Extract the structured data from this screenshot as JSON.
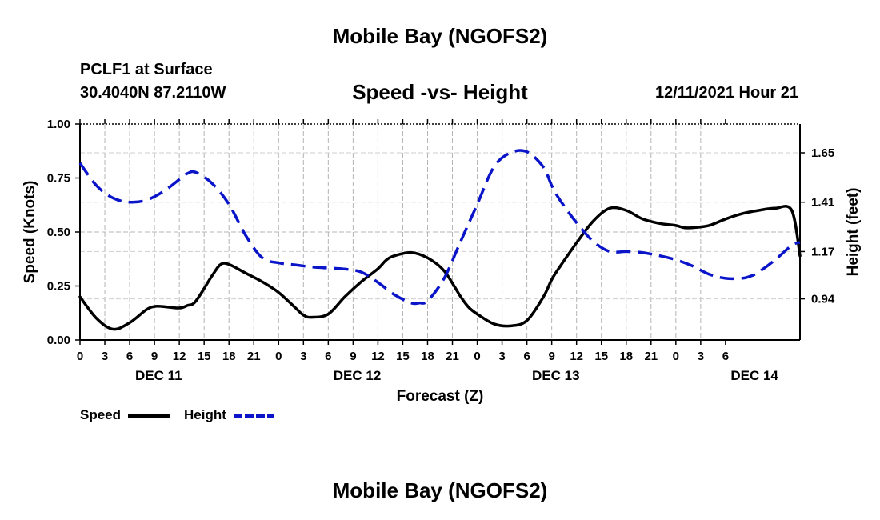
{
  "header": {
    "title": "Mobile Bay (NGOFS2)",
    "station": "PCLF1 at Surface",
    "coords": "30.4040N  87.2110W",
    "subtitle": "Speed -vs- Height",
    "datetime": "12/11/2021 Hour 21"
  },
  "footer": {
    "title": "Mobile Bay (NGOFS2)"
  },
  "legend": {
    "speed_label": "Speed",
    "height_label": "Height",
    "speed_color": "#000000",
    "height_color": "#0a14c8"
  },
  "chart_data": {
    "type": "line",
    "title": "Speed -vs- Height",
    "xlabel": "Forecast (Z)",
    "ylabel_left": "Speed (Knots)",
    "ylabel_right": "Height (feet)",
    "x_hours": [
      0,
      87
    ],
    "x_tick_labels": [
      "0",
      "3",
      "6",
      "9",
      "12",
      "15",
      "18",
      "21",
      "0",
      "3",
      "6",
      "9",
      "12",
      "15",
      "18",
      "21",
      "0",
      "3",
      "6",
      "9",
      "12",
      "15",
      "18",
      "21",
      "0",
      "3",
      "6"
    ],
    "day_labels": [
      {
        "label": "DEC 11",
        "hour": 9.5
      },
      {
        "label": "DEC 12",
        "hour": 33.5
      },
      {
        "label": "DEC 13",
        "hour": 57.5
      },
      {
        "label": "DEC 14",
        "hour": 81.5
      }
    ],
    "y_left": {
      "min": 0,
      "max": 1.0,
      "ticks": [
        0.0,
        0.25,
        0.5,
        0.75,
        1.0
      ],
      "tick_labels": [
        "0.00",
        "0.25",
        "0.50",
        "0.75",
        "1.00"
      ]
    },
    "y_right": {
      "min": 0.74,
      "max": 1.79,
      "ticks": [
        0.94,
        1.17,
        1.41,
        1.65
      ],
      "tick_labels": [
        "0.94",
        "1.17",
        "1.41",
        "1.65"
      ]
    },
    "grid": true,
    "series": [
      {
        "name": "Speed",
        "axis": "left",
        "color": "#000000",
        "style": "solid",
        "x": [
          0,
          2,
          4,
          6,
          8,
          9,
          10,
          12,
          13,
          14,
          16,
          17,
          18,
          20,
          22,
          24,
          26,
          27,
          28,
          30,
          32,
          34,
          36,
          37,
          38,
          40,
          42,
          44,
          46,
          47,
          48,
          50,
          52,
          54,
          56,
          57,
          58,
          60,
          62,
          64,
          66,
          68,
          70,
          72,
          73,
          74,
          76,
          78,
          80,
          82,
          84,
          86,
          87
        ],
        "values": [
          0.2,
          0.1,
          0.05,
          0.08,
          0.14,
          0.155,
          0.155,
          0.148,
          0.16,
          0.18,
          0.3,
          0.35,
          0.35,
          0.31,
          0.27,
          0.22,
          0.15,
          0.115,
          0.105,
          0.12,
          0.2,
          0.27,
          0.33,
          0.37,
          0.39,
          0.405,
          0.38,
          0.32,
          0.2,
          0.15,
          0.12,
          0.075,
          0.065,
          0.09,
          0.2,
          0.28,
          0.34,
          0.45,
          0.55,
          0.61,
          0.6,
          0.56,
          0.54,
          0.53,
          0.52,
          0.52,
          0.53,
          0.56,
          0.585,
          0.6,
          0.61,
          0.6,
          0.39
        ]
      },
      {
        "name": "Height",
        "axis": "right",
        "color": "#0a14c8",
        "style": "dashed",
        "x": [
          0,
          2,
          4,
          6,
          8,
          10,
          12,
          13,
          14,
          16,
          18,
          20,
          22,
          24,
          26,
          28,
          30,
          32,
          34,
          36,
          38,
          40,
          41,
          42,
          44,
          46,
          48,
          50,
          52,
          54,
          56,
          57,
          58,
          60,
          62,
          64,
          66,
          68,
          70,
          72,
          74,
          76,
          78,
          80,
          81,
          82,
          84,
          86,
          87
        ],
        "values": [
          1.6,
          1.49,
          1.43,
          1.41,
          1.42,
          1.46,
          1.52,
          1.55,
          1.555,
          1.5,
          1.4,
          1.25,
          1.14,
          1.115,
          1.105,
          1.095,
          1.09,
          1.085,
          1.07,
          1.02,
          0.96,
          0.92,
          0.92,
          0.93,
          1.04,
          1.22,
          1.4,
          1.58,
          1.65,
          1.655,
          1.58,
          1.49,
          1.42,
          1.31,
          1.22,
          1.17,
          1.17,
          1.165,
          1.15,
          1.13,
          1.1,
          1.06,
          1.04,
          1.04,
          1.05,
          1.07,
          1.13,
          1.2,
          1.215
        ]
      }
    ]
  }
}
